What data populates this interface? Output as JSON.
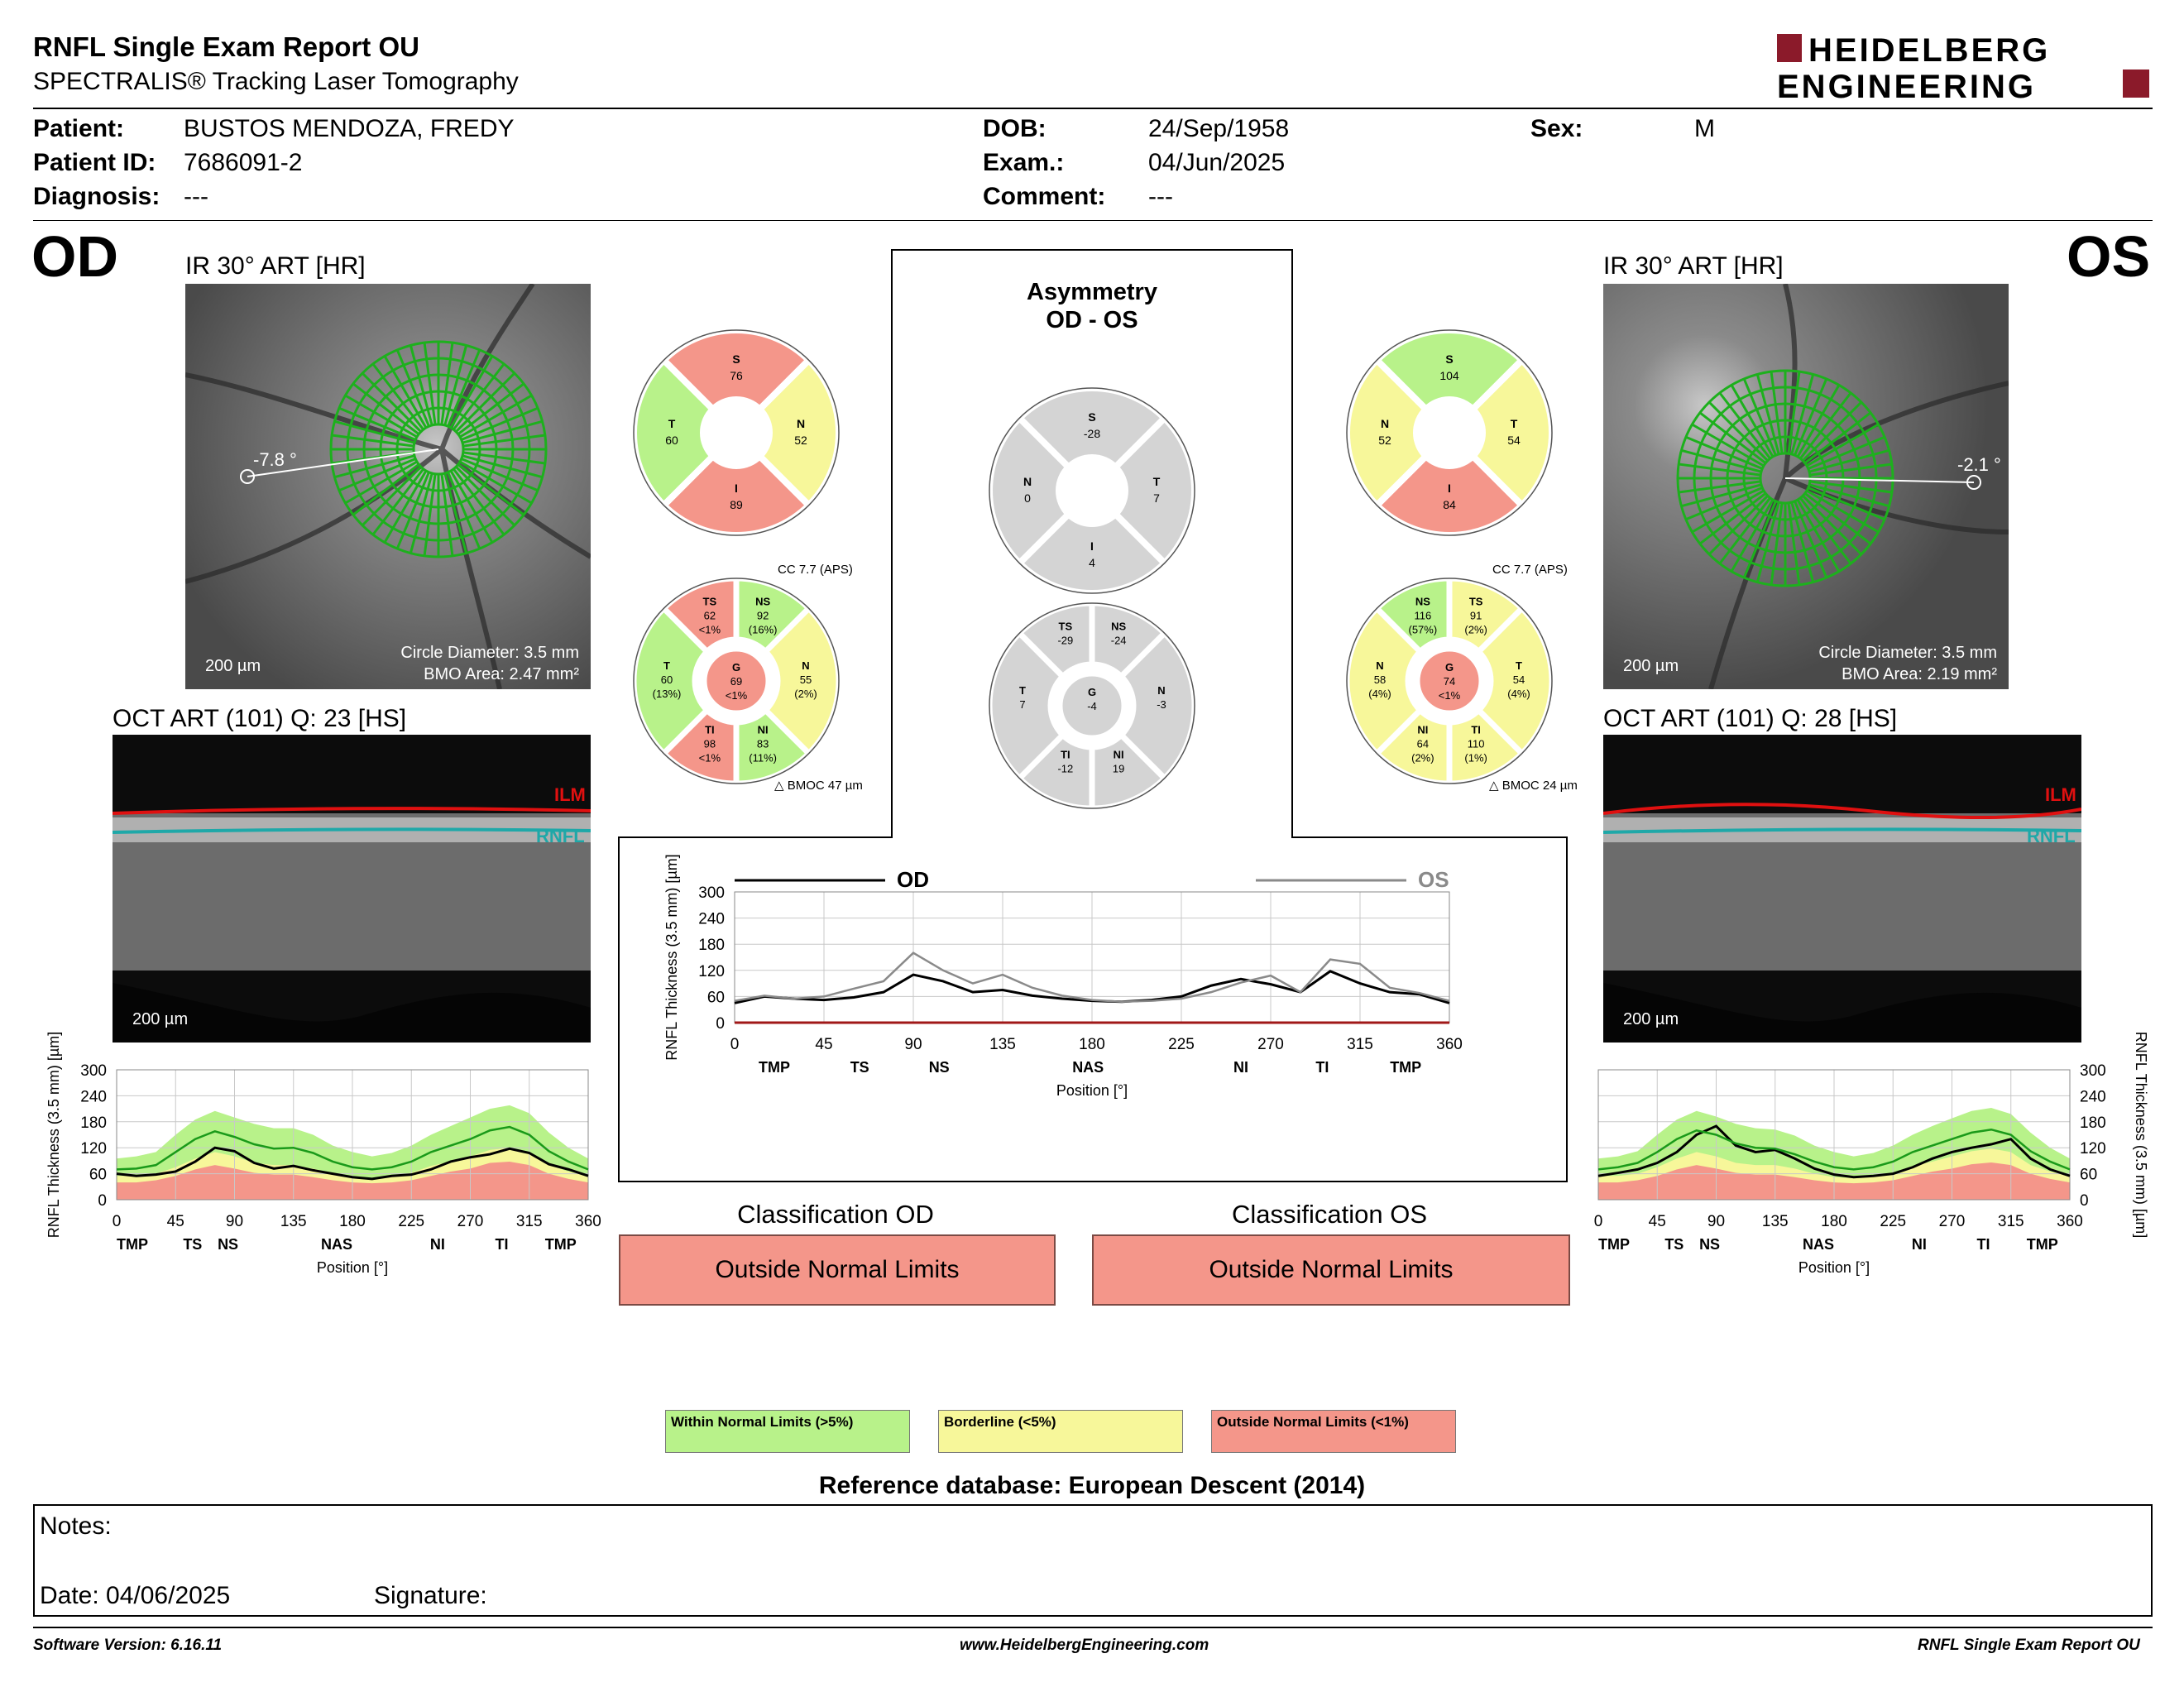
{
  "header": {
    "title": "RNFL Single Exam Report OU",
    "subtitle": "SPECTRALIS® Tracking Laser Tomography",
    "logo_line1": "HEIDELBERG",
    "logo_line2": "ENGINEERING"
  },
  "patient": {
    "patient_label": "Patient:",
    "patient_value": "BUSTOS MENDOZA, FREDY",
    "id_label": "Patient ID:",
    "id_value": "7686091-2",
    "diagnosis_label": "Diagnosis:",
    "diagnosis_value": "---",
    "dob_label": "DOB:",
    "dob_value": "24/Sep/1958",
    "exam_label": "Exam.:",
    "exam_value": "04/Jun/2025",
    "comment_label": "Comment:",
    "comment_value": "---",
    "sex_label": "Sex:",
    "sex_value": "M"
  },
  "od": {
    "eye": "OD",
    "ir_caption": "IR 30° ART [HR]",
    "angle": "-7.8 °",
    "scale": "200 µm",
    "circle_diameter": "Circle Diameter: 3.5 mm",
    "bmo_area": "BMO Area: 2.47 mm²",
    "oct_caption": "OCT ART (101) Q: 23 [HS]",
    "oct_scale": "200 µm",
    "ilm": "ILM",
    "rnfl": "RNFL",
    "cc": "CC 7.7 (APS)",
    "bmoc": "BMOC 47 µm",
    "classification_title": "Classification OD",
    "classification": "Outside Normal Limits"
  },
  "os": {
    "eye": "OS",
    "ir_caption": "IR 30° ART [HR]",
    "angle": "-2.1 °",
    "scale": "200 µm",
    "circle_diameter": "Circle Diameter: 3.5 mm",
    "bmo_area": "BMO Area: 2.19 mm²",
    "oct_caption": "OCT ART (101) Q: 28 [HS]",
    "oct_scale": "200 µm",
    "ilm": "ILM",
    "rnfl": "RNFL",
    "cc": "CC 7.7 (APS)",
    "bmoc": "BMOC 24 µm",
    "classification_title": "Classification OS",
    "classification": "Outside Normal Limits"
  },
  "asymmetry": {
    "title1": "Asymmetry",
    "title2": "OD - OS"
  },
  "colors": {
    "wnl": "#b8f28a",
    "borderline": "#f7f79a",
    "onl": "#f4968a",
    "asym": "#d4d4d4"
  },
  "quadrants": {
    "od": [
      {
        "label": "S",
        "value": "76",
        "color": "onl"
      },
      {
        "label": "N",
        "value": "52",
        "color": "borderline"
      },
      {
        "label": "I",
        "value": "89",
        "color": "onl"
      },
      {
        "label": "T",
        "value": "60",
        "color": "wnl"
      }
    ],
    "os": [
      {
        "label": "S",
        "value": "104",
        "color": "wnl"
      },
      {
        "label": "T",
        "value": "54",
        "color": "borderline"
      },
      {
        "label": "I",
        "value": "84",
        "color": "onl"
      },
      {
        "label": "N",
        "value": "52",
        "color": "borderline"
      }
    ],
    "asym": [
      {
        "label": "S",
        "value": "-28",
        "color": "asym"
      },
      {
        "label": "T",
        "value": "7",
        "color": "asym"
      },
      {
        "label": "I",
        "value": "4",
        "color": "asym"
      },
      {
        "label": "N",
        "value": "0",
        "color": "asym"
      }
    ]
  },
  "sectors": {
    "od": {
      "TS": {
        "label": "TS",
        "value": "62",
        "pct": "<1%",
        "color": "onl"
      },
      "NS": {
        "label": "NS",
        "value": "92",
        "pct": "(16%)",
        "color": "wnl"
      },
      "N": {
        "label": "N",
        "value": "55",
        "pct": "(2%)",
        "color": "borderline"
      },
      "NI": {
        "label": "NI",
        "value": "83",
        "pct": "(11%)",
        "color": "wnl"
      },
      "TI": {
        "label": "TI",
        "value": "98",
        "pct": "<1%",
        "color": "onl"
      },
      "T": {
        "label": "T",
        "value": "60",
        "pct": "(13%)",
        "color": "wnl"
      },
      "G": {
        "label": "G",
        "value": "69",
        "pct": "<1%",
        "color": "onl"
      }
    },
    "os": {
      "NS": {
        "label": "NS",
        "value": "116",
        "pct": "(57%)",
        "color": "wnl"
      },
      "TS": {
        "label": "TS",
        "value": "91",
        "pct": "(2%)",
        "color": "borderline"
      },
      "T": {
        "label": "T",
        "value": "54",
        "pct": "(4%)",
        "color": "borderline"
      },
      "TI": {
        "label": "TI",
        "value": "110",
        "pct": "(1%)",
        "color": "borderline"
      },
      "NI": {
        "label": "NI",
        "value": "64",
        "pct": "(2%)",
        "color": "borderline"
      },
      "N": {
        "label": "N",
        "value": "58",
        "pct": "(4%)",
        "color": "borderline"
      },
      "G": {
        "label": "G",
        "value": "74",
        "pct": "<1%",
        "color": "onl"
      }
    },
    "asym": {
      "NS": {
        "label": "NS",
        "value": "-24",
        "pct": "",
        "color": "asym"
      },
      "TS": {
        "label": "TS",
        "value": "-29",
        "pct": "",
        "color": "asym"
      },
      "T": {
        "label": "T",
        "value": "7",
        "pct": "",
        "color": "asym"
      },
      "TI": {
        "label": "TI",
        "value": "-12",
        "pct": "",
        "color": "asym"
      },
      "NI": {
        "label": "NI",
        "value": "19",
        "pct": "",
        "color": "asym"
      },
      "N": {
        "label": "N",
        "value": "-3",
        "pct": "",
        "color": "asym"
      },
      "G": {
        "label": "G",
        "value": "-4",
        "pct": "",
        "color": "asym"
      }
    }
  },
  "chart_data": [
    {
      "type": "line",
      "id": "od-profile",
      "ylabel": "RNFL Thickness (3.5 mm) [µm]",
      "xlabel": "Position [°]",
      "xlim": [
        0,
        360
      ],
      "ylim": [
        0,
        300
      ],
      "xticks": [
        "0",
        "45",
        "90",
        "135",
        "180",
        "225",
        "270",
        "315",
        "360"
      ],
      "yticks": [
        "0",
        "60",
        "120",
        "180",
        "240",
        "300"
      ],
      "sector_labels": [
        "TMP",
        "TS",
        "NS",
        "NAS",
        "NI",
        "TI",
        "TMP"
      ],
      "sector_positions": [
        12,
        58,
        85,
        168,
        245,
        294,
        339
      ],
      "x": [
        0,
        15,
        30,
        45,
        60,
        75,
        90,
        105,
        120,
        135,
        150,
        165,
        180,
        195,
        210,
        225,
        240,
        255,
        270,
        285,
        300,
        315,
        330,
        345,
        360
      ],
      "series": [
        {
          "name": "OD",
          "color": "#000000",
          "values": [
            60,
            55,
            58,
            65,
            88,
            120,
            112,
            85,
            72,
            78,
            68,
            60,
            52,
            48,
            55,
            58,
            70,
            88,
            98,
            105,
            118,
            108,
            82,
            70,
            55
          ]
        },
        {
          "color": "#1a9a1a",
          "values": [
            70,
            72,
            80,
            110,
            140,
            158,
            145,
            128,
            118,
            120,
            108,
            88,
            75,
            70,
            75,
            88,
            110,
            125,
            140,
            160,
            168,
            150,
            112,
            88,
            70
          ]
        }
      ],
      "bands": {
        "wnl_upper": [
          95,
          100,
          110,
          150,
          185,
          205,
          190,
          175,
          165,
          165,
          150,
          125,
          110,
          100,
          108,
          125,
          150,
          170,
          190,
          210,
          218,
          200,
          155,
          120,
          95
        ],
        "border_upper": [
          55,
          55,
          60,
          75,
          95,
          110,
          100,
          85,
          80,
          80,
          72,
          60,
          52,
          50,
          55,
          62,
          78,
          88,
          100,
          115,
          120,
          110,
          80,
          65,
          55
        ],
        "onl_upper": [
          40,
          40,
          45,
          55,
          70,
          80,
          72,
          62,
          58,
          58,
          52,
          45,
          40,
          38,
          40,
          45,
          55,
          65,
          72,
          85,
          88,
          80,
          60,
          48,
          40
        ]
      }
    },
    {
      "type": "line",
      "id": "os-profile",
      "ylabel": "RNFL Thickness (3.5 mm) [µm]",
      "xlabel": "Position [°]",
      "xlim": [
        0,
        360
      ],
      "ylim": [
        0,
        300
      ],
      "xticks": [
        "0",
        "45",
        "90",
        "135",
        "180",
        "225",
        "270",
        "315",
        "360"
      ],
      "yticks": [
        "0",
        "60",
        "120",
        "180",
        "240",
        "300"
      ],
      "sector_labels": [
        "TMP",
        "TS",
        "NS",
        "NAS",
        "NI",
        "TI",
        "TMP"
      ],
      "sector_positions": [
        12,
        58,
        85,
        168,
        245,
        294,
        339
      ],
      "x": [
        0,
        15,
        30,
        45,
        60,
        75,
        90,
        105,
        120,
        135,
        150,
        165,
        180,
        195,
        210,
        225,
        240,
        255,
        270,
        285,
        300,
        315,
        330,
        345,
        360
      ],
      "series": [
        {
          "name": "OS",
          "color": "#000000",
          "values": [
            55,
            62,
            70,
            85,
            110,
            150,
            170,
            125,
            110,
            115,
            95,
            72,
            58,
            52,
            55,
            60,
            75,
            95,
            110,
            120,
            128,
            140,
            95,
            70,
            55
          ]
        },
        {
          "color": "#1a9a1a",
          "values": [
            70,
            75,
            85,
            110,
            140,
            160,
            150,
            130,
            120,
            118,
            105,
            88,
            75,
            70,
            75,
            88,
            110,
            125,
            140,
            155,
            162,
            150,
            112,
            88,
            70
          ]
        }
      ],
      "bands": {
        "wnl_upper": [
          95,
          100,
          112,
          150,
          185,
          205,
          192,
          175,
          165,
          162,
          148,
          125,
          110,
          100,
          108,
          125,
          150,
          170,
          188,
          205,
          212,
          198,
          155,
          120,
          95
        ],
        "border_upper": [
          55,
          55,
          60,
          75,
          95,
          110,
          100,
          85,
          80,
          80,
          72,
          60,
          52,
          50,
          55,
          62,
          78,
          88,
          100,
          112,
          118,
          110,
          80,
          65,
          55
        ],
        "onl_upper": [
          40,
          40,
          45,
          55,
          70,
          80,
          72,
          62,
          58,
          58,
          52,
          45,
          40,
          38,
          40,
          45,
          55,
          65,
          72,
          82,
          86,
          80,
          60,
          48,
          40
        ]
      }
    },
    {
      "type": "line",
      "id": "asym-profile",
      "ylabel": "RNFL Thickness (3.5 mm) [µm]",
      "xlabel": "Position [°]",
      "xlim": [
        0,
        360
      ],
      "ylim": [
        0,
        300
      ],
      "xticks": [
        "0",
        "45",
        "90",
        "135",
        "180",
        "225",
        "270",
        "315",
        "360"
      ],
      "yticks": [
        "0",
        "60",
        "120",
        "180",
        "240",
        "300"
      ],
      "sector_labels": [
        "TMP",
        "TS",
        "NS",
        "NAS",
        "NI",
        "TI",
        "TMP"
      ],
      "sector_positions": [
        20,
        63,
        103,
        178,
        255,
        296,
        338
      ],
      "x": [
        0,
        15,
        30,
        45,
        60,
        75,
        90,
        105,
        120,
        135,
        150,
        165,
        180,
        195,
        210,
        225,
        240,
        255,
        270,
        285,
        300,
        315,
        330,
        345,
        360
      ],
      "series": [
        {
          "name": "OD",
          "color": "#000000",
          "values": [
            45,
            60,
            55,
            52,
            58,
            70,
            110,
            95,
            70,
            75,
            62,
            55,
            50,
            48,
            52,
            60,
            85,
            100,
            88,
            70,
            118,
            90,
            70,
            65,
            45
          ]
        },
        {
          "name": "OS",
          "color": "#8a8a8a",
          "values": [
            50,
            62,
            55,
            60,
            78,
            95,
            160,
            120,
            90,
            110,
            80,
            62,
            52,
            48,
            50,
            55,
            70,
            92,
            108,
            70,
            145,
            135,
            80,
            68,
            50
          ]
        }
      ]
    }
  ],
  "legend": {
    "wnl": "Within Normal Limits (>5%)",
    "borderline": "Borderline (<5%)",
    "onl": "Outside Normal Limits (<1%)"
  },
  "reference_db": "Reference database: European Descent (2014)",
  "notes": {
    "notes_label": "Notes:",
    "date_label": "Date: 04/06/2025",
    "signature_label": "Signature:"
  },
  "footer": {
    "software": "Software Version: 6.16.11",
    "website": "www.HeidelbergEngineering.com",
    "report": "RNFL Single Exam Report OU"
  }
}
